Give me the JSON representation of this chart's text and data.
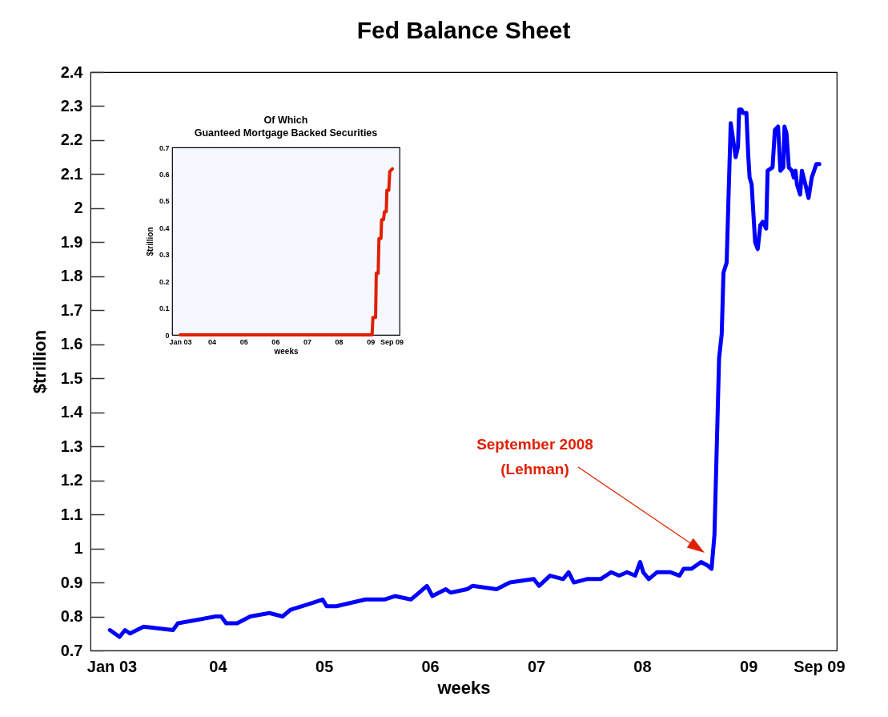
{
  "chart_data": [
    {
      "type": "line",
      "title": "Fed Balance Sheet",
      "xlabel": "weeks",
      "ylabel": "$trillion",
      "xlim": [
        "2002-10-20",
        "2009-11-01"
      ],
      "ylim": [
        0.7,
        2.4
      ],
      "xticks": [
        {
          "value": "2003-01-01",
          "label": "Jan 03"
        },
        {
          "value": "2004-01-01",
          "label": "04"
        },
        {
          "value": "2005-01-01",
          "label": "05"
        },
        {
          "value": "2006-01-01",
          "label": "06"
        },
        {
          "value": "2007-01-01",
          "label": "07"
        },
        {
          "value": "2008-01-01",
          "label": "08"
        },
        {
          "value": "2009-01-01",
          "label": "09"
        },
        {
          "value": "2009-09-01",
          "label": "Sep 09"
        }
      ],
      "yticks": [
        0.7,
        0.8,
        0.9,
        1,
        1.1,
        1.2,
        1.3,
        1.4,
        1.5,
        1.6,
        1.7,
        1.8,
        1.9,
        2,
        2.1,
        2.2,
        2.3,
        2.4
      ],
      "annotations": [
        "September 2008\n(Lehman)"
      ],
      "x": [
        "2002-12-26",
        "2003-01-28",
        "2003-02-16",
        "2003-03-05",
        "2003-04-21",
        "2003-07-31",
        "2003-08-17",
        "2003-12-25",
        "2004-01-13",
        "2004-01-30",
        "2004-03-08",
        "2004-04-22",
        "2004-06-27",
        "2004-08-11",
        "2004-09-08",
        "2004-11-22",
        "2004-12-27",
        "2005-01-10",
        "2005-02-12",
        "2005-05-24",
        "2005-07-28",
        "2005-09-02",
        "2005-10-27",
        "2005-11-24",
        "2005-12-21",
        "2006-01-09",
        "2006-02-24",
        "2006-03-13",
        "2006-05-08",
        "2006-05-27",
        "2006-08-18",
        "2006-10-03",
        "2006-12-24",
        "2007-01-11",
        "2007-02-18",
        "2007-04-04",
        "2007-04-23",
        "2007-05-11",
        "2007-06-25",
        "2007-08-11",
        "2007-09-16",
        "2007-10-14",
        "2007-11-10",
        "2007-12-08",
        "2007-12-25",
        "2008-01-05",
        "2008-01-24",
        "2008-02-21",
        "2008-04-08",
        "2008-05-09",
        "2008-05-23",
        "2008-06-19",
        "2008-07-22",
        "2008-08-13",
        "2008-08-27",
        "2008-09-06",
        "2008-09-22",
        "2008-10-01",
        "2008-10-07",
        "2008-10-18",
        "2008-10-24",
        "2008-11-01",
        "2008-11-18",
        "2008-11-26",
        "2008-11-30",
        "2008-12-08",
        "2008-12-13",
        "2008-12-25",
        "2008-12-31",
        "2009-01-05",
        "2009-01-12",
        "2009-01-24",
        "2009-02-02",
        "2009-02-11",
        "2009-02-19",
        "2009-03-03",
        "2009-03-08",
        "2009-03-25",
        "2009-04-02",
        "2009-04-13",
        "2009-04-21",
        "2009-05-01",
        "2009-05-05",
        "2009-05-12",
        "2009-05-20",
        "2009-05-31",
        "2009-06-06",
        "2009-06-12",
        "2009-06-17",
        "2009-06-28",
        "2009-07-04",
        "2009-07-16",
        "2009-07-27",
        "2009-08-07",
        "2009-08-23",
        "2009-09-02"
      ],
      "series": [
        {
          "color": "#0000ff",
          "values": [
            0.76,
            0.74,
            0.76,
            0.75,
            0.77,
            0.76,
            0.78,
            0.8,
            0.8,
            0.78,
            0.78,
            0.8,
            0.81,
            0.8,
            0.82,
            0.84,
            0.85,
            0.83,
            0.83,
            0.85,
            0.85,
            0.86,
            0.85,
            0.87,
            0.89,
            0.86,
            0.88,
            0.87,
            0.88,
            0.89,
            0.88,
            0.9,
            0.91,
            0.89,
            0.92,
            0.91,
            0.93,
            0.9,
            0.91,
            0.91,
            0.93,
            0.92,
            0.93,
            0.92,
            0.96,
            0.93,
            0.91,
            0.93,
            0.93,
            0.92,
            0.94,
            0.94,
            0.96,
            0.95,
            0.94,
            1.04,
            1.56,
            1.63,
            1.81,
            1.84,
            2.02,
            2.25,
            2.15,
            2.18,
            2.29,
            2.29,
            2.28,
            2.28,
            2.16,
            2.09,
            2.07,
            1.9,
            1.88,
            1.95,
            1.96,
            1.94,
            2.11,
            2.12,
            2.23,
            2.24,
            2.11,
            2.12,
            2.24,
            2.22,
            2.12,
            2.11,
            2.09,
            2.11,
            2.07,
            2.04,
            2.11,
            2.07,
            2.03,
            2.09,
            2.13,
            2.13
          ]
        }
      ]
    },
    {
      "type": "line",
      "title": "Of Which",
      "subtitle": "Guanteed Mortgage Backed Securities",
      "xlabel": "weeks",
      "ylabel": "$trillion",
      "xlim": [
        "2002-10-01",
        "2009-12-01"
      ],
      "ylim": [
        0,
        0.7
      ],
      "xticks": [
        {
          "value": "2003-01-01",
          "label": "Jan 03"
        },
        {
          "value": "2004-01-01",
          "label": "04"
        },
        {
          "value": "2005-01-01",
          "label": "05"
        },
        {
          "value": "2006-01-01",
          "label": "06"
        },
        {
          "value": "2007-01-01",
          "label": "07"
        },
        {
          "value": "2008-01-01",
          "label": "08"
        },
        {
          "value": "2009-01-01",
          "label": "09"
        },
        {
          "value": "2009-09-01",
          "label": "Sep 09"
        }
      ],
      "yticks": [
        0,
        0.1,
        0.2,
        0.3,
        0.4,
        0.5,
        0.6,
        0.7
      ],
      "x": [
        "2003-01-01",
        "2008-12-31",
        "2009-01-19",
        "2009-01-28",
        "2009-02-28",
        "2009-03-08",
        "2009-03-30",
        "2009-04-08",
        "2009-05-01",
        "2009-05-08",
        "2009-05-30",
        "2009-06-10",
        "2009-07-01",
        "2009-07-08",
        "2009-07-30",
        "2009-08-10",
        "2009-09-09"
      ],
      "series": [
        {
          "color": "#e02000",
          "values": [
            0,
            0,
            0,
            0.065,
            0.065,
            0.23,
            0.23,
            0.36,
            0.36,
            0.43,
            0.43,
            0.46,
            0.46,
            0.54,
            0.54,
            0.61,
            0.62
          ]
        }
      ]
    }
  ]
}
